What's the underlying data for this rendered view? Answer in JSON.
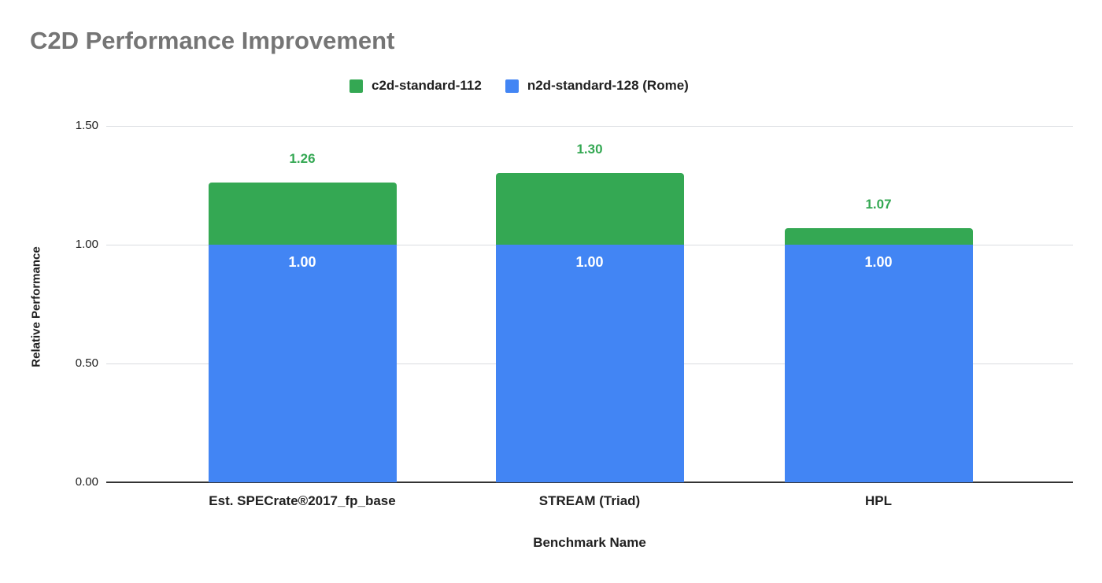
{
  "title": "C2D Performance Improvement",
  "chart_data": {
    "type": "bar",
    "subtype": "overlapping-vertical-bars",
    "title": "C2D Performance Improvement",
    "categories": [
      "Est. SPECrate®2017_fp_base",
      "STREAM (Triad)",
      "HPL"
    ],
    "series": [
      {
        "name": "c2d-standard-112",
        "color": "#34a853",
        "values": [
          1.26,
          1.3,
          1.07
        ],
        "data_labels": [
          "1.26",
          "1.30",
          "1.07"
        ],
        "data_label_color": "#34a853",
        "data_label_position": "above-bar"
      },
      {
        "name": "n2d-standard-128 (Rome)",
        "color": "#4285f4",
        "values": [
          1.0,
          1.0,
          1.0
        ],
        "data_labels": [
          "1.00",
          "1.00",
          "1.00"
        ],
        "data_label_color": "#ffffff",
        "data_label_position": "inside-top"
      }
    ],
    "xlabel": "Benchmark Name",
    "ylabel": "Relative Performance",
    "ylim": [
      0,
      1.5
    ],
    "yticks": [
      {
        "value": 0.0,
        "label": "0.00"
      },
      {
        "value": 0.5,
        "label": "0.50"
      },
      {
        "value": 1.0,
        "label": "1.00"
      },
      {
        "value": 1.5,
        "label": "1.50"
      }
    ],
    "grid": true,
    "legend_position": "top",
    "colors": {
      "title_text": "#757575",
      "axis_text": "#212121",
      "gridline": "#dadce0",
      "axis_line": "#333333",
      "background": "#ffffff"
    }
  }
}
